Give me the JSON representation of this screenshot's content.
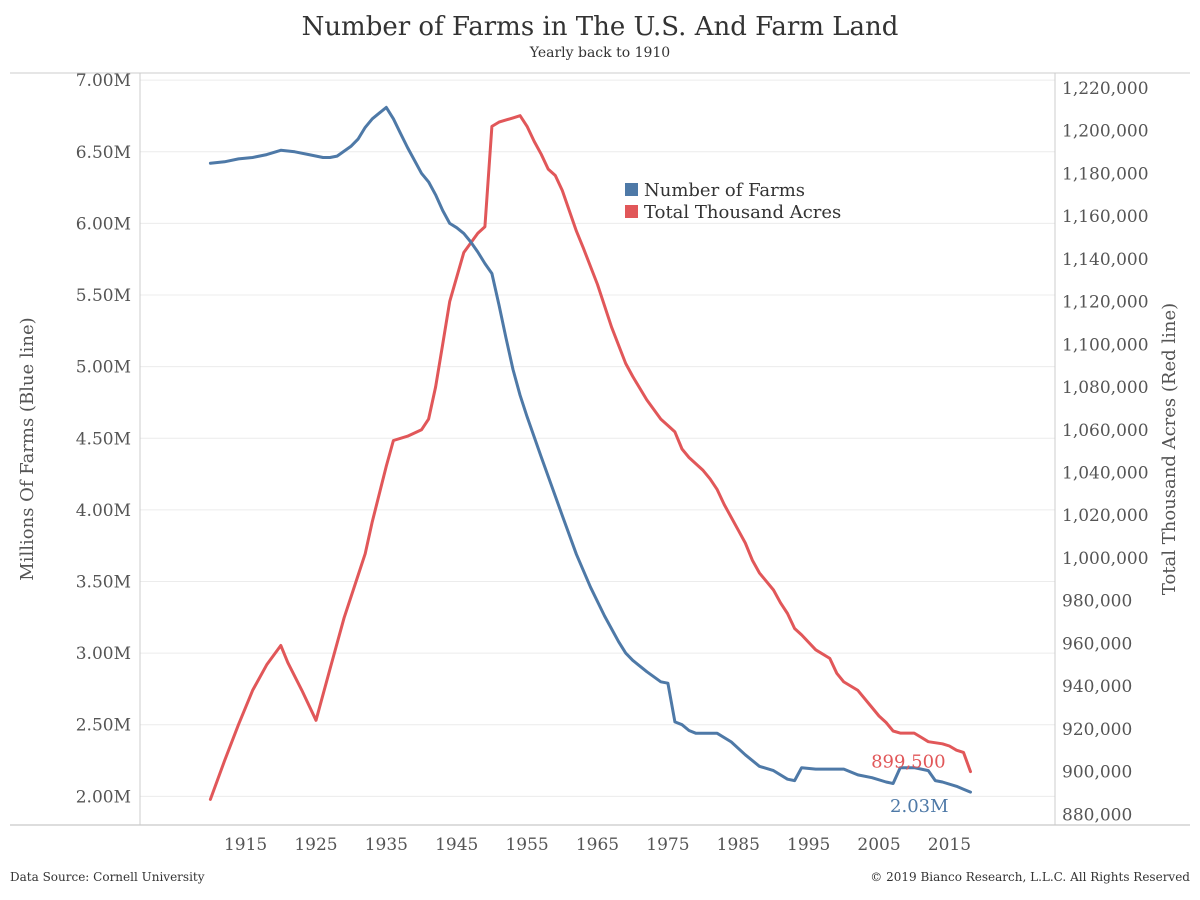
{
  "colors": {
    "farms": "#4e79a7",
    "acres": "#e15759",
    "grid": "#ececec",
    "axis": "#cccccc",
    "text": "#555555"
  },
  "chart_data": {
    "type": "line",
    "title": "Number of Farms in The U.S.  And Farm Land",
    "subtitle": "Yearly back to 1910",
    "ylabel_left": "Millions Of Farms (Blue line)",
    "ylabel_right": "Total Thousand Acres (Red line)",
    "xlim": [
      1900,
      2030
    ],
    "ylim_left": [
      1.8,
      7.05
    ],
    "ylim_right": [
      875000,
      1227000
    ],
    "x_ticks": [
      1915,
      1925,
      1935,
      1945,
      1955,
      1965,
      1975,
      1985,
      1995,
      2005,
      2015
    ],
    "y_ticks_left": [
      {
        "v": 2.0,
        "label": "2.00M"
      },
      {
        "v": 2.5,
        "label": "2.50M"
      },
      {
        "v": 3.0,
        "label": "3.00M"
      },
      {
        "v": 3.5,
        "label": "3.50M"
      },
      {
        "v": 4.0,
        "label": "4.00M"
      },
      {
        "v": 4.5,
        "label": "4.50M"
      },
      {
        "v": 5.0,
        "label": "5.00M"
      },
      {
        "v": 5.5,
        "label": "5.50M"
      },
      {
        "v": 6.0,
        "label": "6.00M"
      },
      {
        "v": 6.5,
        "label": "6.50M"
      },
      {
        "v": 7.0,
        "label": "7.00M"
      }
    ],
    "y_ticks_right": [
      {
        "v": 880000,
        "label": "880,000"
      },
      {
        "v": 900000,
        "label": "900,000"
      },
      {
        "v": 920000,
        "label": "920,000"
      },
      {
        "v": 940000,
        "label": "940,000"
      },
      {
        "v": 960000,
        "label": "960,000"
      },
      {
        "v": 980000,
        "label": "980,000"
      },
      {
        "v": 1000000,
        "label": "1,000,000"
      },
      {
        "v": 1020000,
        "label": "1,020,000"
      },
      {
        "v": 1040000,
        "label": "1,040,000"
      },
      {
        "v": 1060000,
        "label": "1,060,000"
      },
      {
        "v": 1080000,
        "label": "1,080,000"
      },
      {
        "v": 1100000,
        "label": "1,100,000"
      },
      {
        "v": 1120000,
        "label": "1,120,000"
      },
      {
        "v": 1140000,
        "label": "1,140,000"
      },
      {
        "v": 1160000,
        "label": "1,160,000"
      },
      {
        "v": 1180000,
        "label": "1,180,000"
      },
      {
        "v": 1200000,
        "label": "1,200,000"
      },
      {
        "v": 1220000,
        "label": "1,220,000"
      }
    ],
    "legend": {
      "placement": "upper-center",
      "items": [
        {
          "name": "Number of Farms",
          "series": "farms"
        },
        {
          "name": "Total Thousand Acres",
          "series": "acres"
        }
      ]
    },
    "series": {
      "farms": {
        "axis": "left",
        "points": [
          [
            1910,
            6.42
          ],
          [
            1912,
            6.43
          ],
          [
            1914,
            6.45
          ],
          [
            1916,
            6.46
          ],
          [
            1918,
            6.48
          ],
          [
            1920,
            6.51
          ],
          [
            1922,
            6.5
          ],
          [
            1924,
            6.48
          ],
          [
            1926,
            6.46
          ],
          [
            1927,
            6.46
          ],
          [
            1928,
            6.47
          ],
          [
            1930,
            6.54
          ],
          [
            1931,
            6.59
          ],
          [
            1932,
            6.67
          ],
          [
            1933,
            6.73
          ],
          [
            1934,
            6.77
          ],
          [
            1935,
            6.81
          ],
          [
            1936,
            6.73
          ],
          [
            1937,
            6.63
          ],
          [
            1938,
            6.53
          ],
          [
            1940,
            6.35
          ],
          [
            1941,
            6.29
          ],
          [
            1942,
            6.2
          ],
          [
            1943,
            6.09
          ],
          [
            1944,
            6.0
          ],
          [
            1945,
            5.97
          ],
          [
            1946,
            5.93
          ],
          [
            1947,
            5.87
          ],
          [
            1948,
            5.8
          ],
          [
            1949,
            5.72
          ],
          [
            1950,
            5.65
          ],
          [
            1951,
            5.43
          ],
          [
            1952,
            5.2
          ],
          [
            1953,
            4.98
          ],
          [
            1954,
            4.8
          ],
          [
            1955,
            4.65
          ],
          [
            1957,
            4.37
          ],
          [
            1960,
            3.96
          ],
          [
            1962,
            3.69
          ],
          [
            1964,
            3.46
          ],
          [
            1966,
            3.26
          ],
          [
            1968,
            3.08
          ],
          [
            1969,
            3.0
          ],
          [
            1970,
            2.95
          ],
          [
            1972,
            2.87
          ],
          [
            1974,
            2.8
          ],
          [
            1975,
            2.79
          ],
          [
            1976,
            2.52
          ],
          [
            1977,
            2.5
          ],
          [
            1978,
            2.46
          ],
          [
            1979,
            2.44
          ],
          [
            1980,
            2.44
          ],
          [
            1981,
            2.44
          ],
          [
            1982,
            2.44
          ],
          [
            1984,
            2.38
          ],
          [
            1986,
            2.29
          ],
          [
            1988,
            2.21
          ],
          [
            1990,
            2.18
          ],
          [
            1992,
            2.12
          ],
          [
            1993,
            2.11
          ],
          [
            1994,
            2.2
          ],
          [
            1996,
            2.19
          ],
          [
            1998,
            2.19
          ],
          [
            2000,
            2.19
          ],
          [
            2002,
            2.15
          ],
          [
            2004,
            2.13
          ],
          [
            2006,
            2.1
          ],
          [
            2007,
            2.09
          ],
          [
            2008,
            2.2
          ],
          [
            2010,
            2.2
          ],
          [
            2011,
            2.19
          ],
          [
            2012,
            2.18
          ],
          [
            2013,
            2.11
          ],
          [
            2014,
            2.1
          ],
          [
            2016,
            2.07
          ],
          [
            2017,
            2.05
          ],
          [
            2018,
            2.03
          ]
        ],
        "end_label": "2.03M"
      },
      "acres": {
        "axis": "right",
        "points": [
          [
            1910,
            887000
          ],
          [
            1912,
            905000
          ],
          [
            1914,
            922000
          ],
          [
            1916,
            938000
          ],
          [
            1918,
            950000
          ],
          [
            1920,
            959000
          ],
          [
            1921,
            951000
          ],
          [
            1923,
            938000
          ],
          [
            1925,
            924000
          ],
          [
            1927,
            948000
          ],
          [
            1929,
            972000
          ],
          [
            1931,
            992000
          ],
          [
            1932,
            1002000
          ],
          [
            1933,
            1017000
          ],
          [
            1934,
            1030000
          ],
          [
            1935,
            1043000
          ],
          [
            1936,
            1055000
          ],
          [
            1938,
            1057000
          ],
          [
            1940,
            1060000
          ],
          [
            1941,
            1065000
          ],
          [
            1942,
            1080000
          ],
          [
            1943,
            1100000
          ],
          [
            1944,
            1120000
          ],
          [
            1946,
            1143000
          ],
          [
            1948,
            1152000
          ],
          [
            1949,
            1155000
          ],
          [
            1950,
            1202000
          ],
          [
            1951,
            1204000
          ],
          [
            1953,
            1206000
          ],
          [
            1954,
            1207000
          ],
          [
            1955,
            1202000
          ],
          [
            1956,
            1195000
          ],
          [
            1957,
            1189000
          ],
          [
            1958,
            1182000
          ],
          [
            1959,
            1179000
          ],
          [
            1960,
            1172000
          ],
          [
            1962,
            1153000
          ],
          [
            1963,
            1145000
          ],
          [
            1965,
            1128000
          ],
          [
            1967,
            1108000
          ],
          [
            1969,
            1091000
          ],
          [
            1970,
            1085000
          ],
          [
            1972,
            1074000
          ],
          [
            1974,
            1065000
          ],
          [
            1975,
            1062000
          ],
          [
            1976,
            1059000
          ],
          [
            1977,
            1051000
          ],
          [
            1978,
            1047000
          ],
          [
            1980,
            1041000
          ],
          [
            1981,
            1037000
          ],
          [
            1982,
            1032000
          ],
          [
            1983,
            1025000
          ],
          [
            1985,
            1013000
          ],
          [
            1986,
            1007000
          ],
          [
            1987,
            999000
          ],
          [
            1988,
            993000
          ],
          [
            1990,
            985000
          ],
          [
            1991,
            979000
          ],
          [
            1992,
            974000
          ],
          [
            1993,
            967000
          ],
          [
            1994,
            964000
          ],
          [
            1996,
            957000
          ],
          [
            1998,
            953000
          ],
          [
            1999,
            946000
          ],
          [
            2000,
            942000
          ],
          [
            2002,
            938000
          ],
          [
            2004,
            930000
          ],
          [
            2005,
            926000
          ],
          [
            2006,
            923000
          ],
          [
            2007,
            919000
          ],
          [
            2008,
            918000
          ],
          [
            2010,
            918000
          ],
          [
            2011,
            916000
          ],
          [
            2012,
            914000
          ],
          [
            2014,
            913000
          ],
          [
            2015,
            912000
          ],
          [
            2016,
            910000
          ],
          [
            2017,
            909000
          ],
          [
            2018,
            900000
          ]
        ],
        "end_label": "899,500"
      }
    }
  },
  "footer": {
    "source": "Data Source: Cornell University",
    "copyright": "© 2019 Bianco Research, L.L.C. All Rights Reserved"
  }
}
